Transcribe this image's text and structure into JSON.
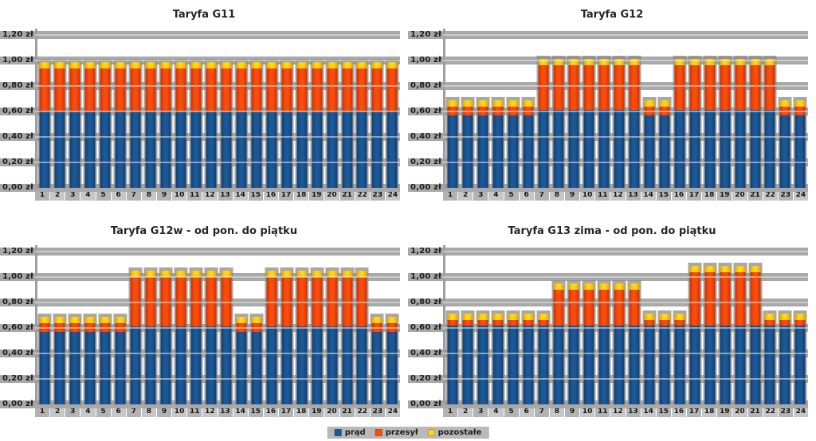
{
  "page": {
    "background": "#ffffff"
  },
  "legend": {
    "items": [
      {
        "label": "prąd",
        "color": "#1c5796",
        "color_dark": "#103e6e"
      },
      {
        "label": "przesył",
        "color": "#fb4b0d",
        "color_dark": "#c63400"
      },
      {
        "label": "pozostałe",
        "color": "#ffd41e",
        "color_dark": "#dfa600"
      }
    ]
  },
  "axis": {
    "max": 1.25,
    "currency_unit": "zł",
    "ticks": [
      {
        "value": 0.0,
        "label": "0,00 zł"
      },
      {
        "value": 0.2,
        "label": "0,20 zł"
      },
      {
        "value": 0.4,
        "label": "0,40 zł"
      },
      {
        "value": 0.6,
        "label": "0,60 zł"
      },
      {
        "value": 0.8,
        "label": "0,80 zł"
      },
      {
        "value": 1.0,
        "label": "1,00 zł"
      },
      {
        "value": 1.2,
        "label": "1,20 zł"
      }
    ]
  },
  "chart_data": [
    {
      "type": "bar",
      "stacked": true,
      "title": "Taryfa G11",
      "xlabel": "",
      "ylabel": "",
      "ylim": [
        0,
        1.25
      ],
      "grid": true,
      "categories": [
        "1",
        "2",
        "3",
        "4",
        "5",
        "6",
        "7",
        "8",
        "9",
        "10",
        "11",
        "12",
        "13",
        "14",
        "15",
        "16",
        "17",
        "18",
        "19",
        "20",
        "21",
        "22",
        "23",
        "24"
      ],
      "series": [
        {
          "name": "prąd",
          "values": [
            0.6,
            0.6,
            0.6,
            0.6,
            0.6,
            0.6,
            0.6,
            0.6,
            0.6,
            0.6,
            0.6,
            0.6,
            0.6,
            0.6,
            0.6,
            0.6,
            0.6,
            0.6,
            0.6,
            0.6,
            0.6,
            0.6,
            0.6,
            0.6
          ]
        },
        {
          "name": "przesył",
          "values": [
            0.34,
            0.34,
            0.34,
            0.34,
            0.34,
            0.34,
            0.34,
            0.34,
            0.34,
            0.34,
            0.34,
            0.34,
            0.34,
            0.34,
            0.34,
            0.34,
            0.34,
            0.34,
            0.34,
            0.34,
            0.34,
            0.34,
            0.34,
            0.34
          ]
        },
        {
          "name": "pozostałe",
          "values": [
            0.05,
            0.05,
            0.05,
            0.05,
            0.05,
            0.05,
            0.05,
            0.05,
            0.05,
            0.05,
            0.05,
            0.05,
            0.05,
            0.05,
            0.05,
            0.05,
            0.05,
            0.05,
            0.05,
            0.05,
            0.05,
            0.05,
            0.05,
            0.05
          ]
        }
      ]
    },
    {
      "type": "bar",
      "stacked": true,
      "title": "Taryfa G12",
      "xlabel": "",
      "ylabel": "",
      "ylim": [
        0,
        1.25
      ],
      "grid": true,
      "categories": [
        "1",
        "2",
        "3",
        "4",
        "5",
        "6",
        "7",
        "8",
        "9",
        "10",
        "11",
        "12",
        "13",
        "14",
        "15",
        "16",
        "17",
        "18",
        "19",
        "20",
        "21",
        "22",
        "23",
        "24"
      ],
      "series": [
        {
          "name": "prąd",
          "values": [
            0.57,
            0.57,
            0.57,
            0.57,
            0.57,
            0.57,
            0.61,
            0.61,
            0.61,
            0.61,
            0.61,
            0.61,
            0.61,
            0.57,
            0.57,
            0.61,
            0.61,
            0.61,
            0.61,
            0.61,
            0.61,
            0.61,
            0.57,
            0.57
          ]
        },
        {
          "name": "przesył",
          "values": [
            0.07,
            0.07,
            0.07,
            0.07,
            0.07,
            0.07,
            0.35,
            0.35,
            0.35,
            0.35,
            0.35,
            0.35,
            0.35,
            0.07,
            0.07,
            0.35,
            0.35,
            0.35,
            0.35,
            0.35,
            0.35,
            0.35,
            0.07,
            0.07
          ]
        },
        {
          "name": "pozostałe",
          "values": [
            0.05,
            0.05,
            0.05,
            0.05,
            0.05,
            0.05,
            0.05,
            0.05,
            0.05,
            0.05,
            0.05,
            0.05,
            0.05,
            0.05,
            0.05,
            0.05,
            0.05,
            0.05,
            0.05,
            0.05,
            0.05,
            0.05,
            0.05,
            0.05
          ]
        }
      ]
    },
    {
      "type": "bar",
      "stacked": true,
      "title": "Taryfa G12w - od pon. do piątku",
      "xlabel": "",
      "ylabel": "",
      "ylim": [
        0,
        1.25
      ],
      "grid": true,
      "categories": [
        "1",
        "2",
        "3",
        "4",
        "5",
        "6",
        "7",
        "8",
        "9",
        "10",
        "11",
        "12",
        "13",
        "14",
        "15",
        "16",
        "17",
        "18",
        "19",
        "20",
        "21",
        "22",
        "23",
        "24"
      ],
      "series": [
        {
          "name": "prąd",
          "values": [
            0.57,
            0.57,
            0.57,
            0.57,
            0.57,
            0.57,
            0.61,
            0.61,
            0.61,
            0.61,
            0.61,
            0.61,
            0.61,
            0.57,
            0.57,
            0.61,
            0.61,
            0.61,
            0.61,
            0.61,
            0.61,
            0.61,
            0.57,
            0.57
          ]
        },
        {
          "name": "przesył",
          "values": [
            0.07,
            0.07,
            0.07,
            0.07,
            0.07,
            0.07,
            0.39,
            0.39,
            0.39,
            0.39,
            0.39,
            0.39,
            0.39,
            0.07,
            0.07,
            0.39,
            0.39,
            0.39,
            0.39,
            0.39,
            0.39,
            0.39,
            0.07,
            0.07
          ]
        },
        {
          "name": "pozostałe",
          "values": [
            0.05,
            0.05,
            0.05,
            0.05,
            0.05,
            0.05,
            0.05,
            0.05,
            0.05,
            0.05,
            0.05,
            0.05,
            0.05,
            0.05,
            0.05,
            0.05,
            0.05,
            0.05,
            0.05,
            0.05,
            0.05,
            0.05,
            0.05,
            0.05
          ]
        }
      ]
    },
    {
      "type": "bar",
      "stacked": true,
      "title": "Taryfa G13 zima - od pon. do piątku",
      "xlabel": "",
      "ylabel": "",
      "ylim": [
        0,
        1.25
      ],
      "grid": true,
      "categories": [
        "1",
        "2",
        "3",
        "4",
        "5",
        "6",
        "7",
        "8",
        "9",
        "10",
        "11",
        "12",
        "13",
        "14",
        "15",
        "16",
        "17",
        "18",
        "19",
        "20",
        "21",
        "22",
        "23",
        "24"
      ],
      "series": [
        {
          "name": "prąd",
          "values": [
            0.62,
            0.62,
            0.62,
            0.62,
            0.62,
            0.62,
            0.62,
            0.62,
            0.62,
            0.62,
            0.62,
            0.62,
            0.62,
            0.62,
            0.62,
            0.62,
            0.62,
            0.62,
            0.62,
            0.62,
            0.62,
            0.62,
            0.62,
            0.62
          ]
        },
        {
          "name": "przesył",
          "values": [
            0.04,
            0.04,
            0.04,
            0.04,
            0.04,
            0.04,
            0.04,
            0.28,
            0.28,
            0.28,
            0.28,
            0.28,
            0.28,
            0.04,
            0.04,
            0.04,
            0.42,
            0.42,
            0.42,
            0.42,
            0.42,
            0.04,
            0.04,
            0.04
          ]
        },
        {
          "name": "pozostałe",
          "values": [
            0.05,
            0.05,
            0.05,
            0.05,
            0.05,
            0.05,
            0.05,
            0.05,
            0.05,
            0.05,
            0.05,
            0.05,
            0.05,
            0.05,
            0.05,
            0.05,
            0.05,
            0.05,
            0.05,
            0.05,
            0.05,
            0.05,
            0.05,
            0.05
          ]
        }
      ]
    }
  ]
}
